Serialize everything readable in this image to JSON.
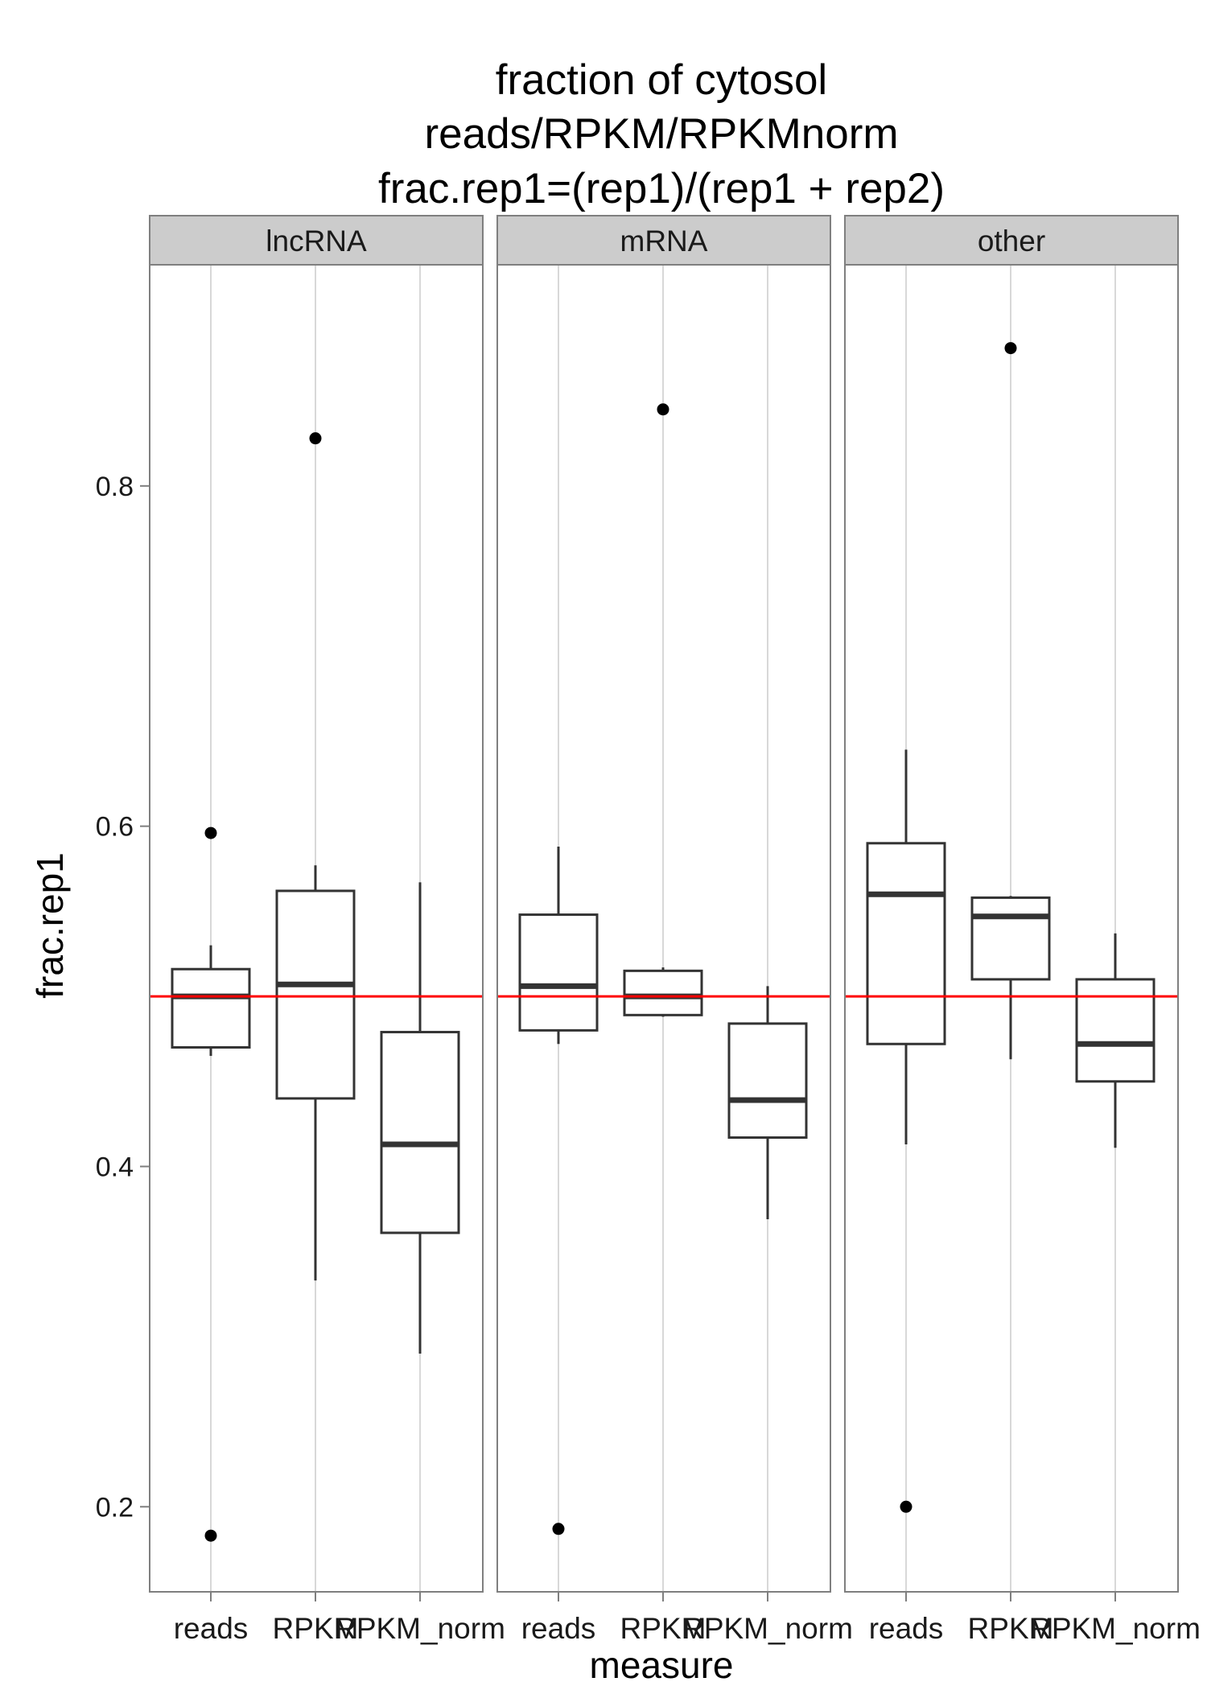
{
  "chart_data": {
    "type": "boxplot",
    "title": [
      "fraction of cytosol",
      "reads/RPKM/RPKMnorm",
      "frac.rep1=(rep1)/(rep1 + rep2)"
    ],
    "xlabel": "measure",
    "ylabel": "frac.rep1",
    "ylim": [
      0.15,
      0.93
    ],
    "yticks": [
      0.2,
      0.4,
      0.6,
      0.8
    ],
    "ytick_labels": [
      "0.2",
      "0.4",
      "0.6",
      "0.8"
    ],
    "categories": [
      "reads",
      "RPKM",
      "RPKM_norm"
    ],
    "reference_line": {
      "y": 0.5,
      "color": "#ff0000"
    },
    "grid": true,
    "colors": {
      "box": "#333333",
      "grid": "#cccccc",
      "strip": "#cccccc",
      "frame": "#7f7f7f",
      "outlier": "#000000"
    },
    "panels": [
      {
        "label": "lncRNA",
        "boxes": [
          {
            "category": "reads",
            "min": 0.465,
            "q1": 0.47,
            "median": 0.5,
            "q3": 0.516,
            "max": 0.53,
            "outliers": [
              0.596,
              0.183
            ]
          },
          {
            "category": "RPKM",
            "min": 0.333,
            "q1": 0.44,
            "median": 0.507,
            "q3": 0.562,
            "max": 0.577,
            "outliers": [
              0.828
            ]
          },
          {
            "category": "RPKM_norm",
            "min": 0.29,
            "q1": 0.361,
            "median": 0.413,
            "q3": 0.479,
            "max": 0.567,
            "outliers": []
          }
        ]
      },
      {
        "label": "mRNA",
        "boxes": [
          {
            "category": "reads",
            "min": 0.472,
            "q1": 0.48,
            "median": 0.506,
            "q3": 0.548,
            "max": 0.588,
            "outliers": [
              0.187
            ]
          },
          {
            "category": "RPKM",
            "min": 0.488,
            "q1": 0.489,
            "median": 0.5,
            "q3": 0.515,
            "max": 0.517,
            "outliers": [
              0.845
            ]
          },
          {
            "category": "RPKM_norm",
            "min": 0.369,
            "q1": 0.417,
            "median": 0.439,
            "q3": 0.484,
            "max": 0.506,
            "outliers": []
          }
        ]
      },
      {
        "label": "other",
        "boxes": [
          {
            "category": "reads",
            "min": 0.413,
            "q1": 0.472,
            "median": 0.56,
            "q3": 0.59,
            "max": 0.645,
            "outliers": [
              0.2
            ]
          },
          {
            "category": "RPKM",
            "min": 0.463,
            "q1": 0.51,
            "median": 0.547,
            "q3": 0.558,
            "max": 0.559,
            "outliers": [
              0.881
            ]
          },
          {
            "category": "RPKM_norm",
            "min": 0.411,
            "q1": 0.45,
            "median": 0.472,
            "q3": 0.51,
            "max": 0.537,
            "outliers": []
          }
        ]
      }
    ]
  }
}
